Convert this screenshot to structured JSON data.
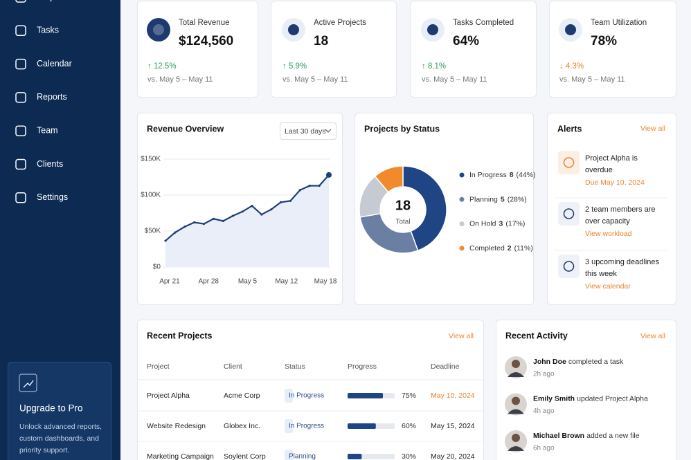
{
  "sidebar": {
    "nav": [
      "Projects",
      "Tasks",
      "Calendar",
      "Reports",
      "Team",
      "Clients",
      "Settings"
    ],
    "upgrade": {
      "title": "Upgrade to Pro",
      "text": "Unlock advanced reports, custom dashboards, and priority support."
    }
  },
  "kpis": [
    {
      "label": "Total Revenue",
      "value": "$124,560",
      "change": "↑ 12.5%",
      "change_color": "#2e9d5b",
      "period": "vs. May 5 – May 11"
    },
    {
      "label": "Active Projects",
      "value": "18",
      "change": "↑ 5.9%",
      "change_color": "#2e9d5b",
      "period": "vs. May 5 – May 11"
    },
    {
      "label": "Tasks Completed",
      "value": "64%",
      "change": "↑ 8.1%",
      "change_color": "#2e9d5b",
      "period": "vs. May 5 – May 11"
    },
    {
      "label": "Team Utilization",
      "value": "78%",
      "change": "↓ 4.3%",
      "change_color": "#e8852b",
      "period": "vs. May 5 – May 11"
    }
  ],
  "revenue_filter": "Last 30 days",
  "chart_data": [
    {
      "type": "line",
      "title": "Revenue Overview",
      "color": "#1e3f7a",
      "area_color": "#e9eef8",
      "values": [
        36500,
        48000,
        56000,
        62000,
        60000,
        67000,
        64000,
        71000,
        77000,
        85000,
        73000,
        80000,
        90000,
        92000,
        107000,
        113000,
        113000,
        128000
      ],
      "xtick_labels": [
        "Apr 21",
        "Apr 28",
        "May 5",
        "May 12",
        "May 18"
      ],
      "ylim": [
        0,
        150000
      ],
      "yticks": [
        {
          "value": 0,
          "label": "$0"
        },
        {
          "value": 50000,
          "label": "$50K"
        },
        {
          "value": 100000,
          "label": "$100K"
        },
        {
          "value": 150000,
          "label": "$150K"
        }
      ],
      "grid": true
    },
    {
      "type": "pie",
      "title": "Projects by Status",
      "center_value": "18",
      "center_label": "Total",
      "categories": [
        "In Progress",
        "Planning",
        "On Hold",
        "Completed"
      ],
      "values": [
        8,
        5,
        3,
        2
      ],
      "percent_labels": [
        "(44%)",
        "(28%)",
        "(17%)",
        "(11%)"
      ],
      "colors": [
        "#1f4585",
        "#6b7fa3",
        "#c5cad3",
        "#f08a2c"
      ]
    }
  ],
  "alerts": {
    "title": "Alerts",
    "view_all": "View all",
    "items": [
      {
        "text": "Project Alpha is overdue",
        "link": "Due May 10, 2024"
      },
      {
        "text": "2 team members are over capacity",
        "link": "View workload"
      },
      {
        "text": "3 upcoming deadlines this week",
        "link": "View calendar"
      }
    ]
  },
  "projects": {
    "title": "Recent Projects",
    "view_all": "View all",
    "columns": [
      "Project",
      "Client",
      "Status",
      "Progress",
      "Deadline"
    ],
    "rows": [
      {
        "project": "Project Alpha",
        "client": "Acme Corp",
        "status": "In Progress",
        "progress": 75,
        "progress_label": "75%",
        "deadline": "May 10, 2024",
        "deadline_color": "#e8852b"
      },
      {
        "project": "Website Redesign",
        "client": "Globex Inc.",
        "status": "In Progress",
        "progress": 60,
        "progress_label": "60%",
        "deadline": "May 15, 2024"
      },
      {
        "project": "Marketing Campaign",
        "client": "Soylent Corp",
        "status": "Planning",
        "progress": 30,
        "progress_label": "30%",
        "deadline": "May 20, 2024"
      }
    ]
  },
  "activity": {
    "title": "Recent Activity",
    "view_all": "View all",
    "items": [
      {
        "name": "John Doe",
        "action": "completed a task",
        "time": "2h ago"
      },
      {
        "name": "Emily Smith",
        "action": "updated Project Alpha",
        "time": "4h ago"
      },
      {
        "name": "Michael Brown",
        "action": "added a new file",
        "time": "6h ago"
      }
    ]
  }
}
